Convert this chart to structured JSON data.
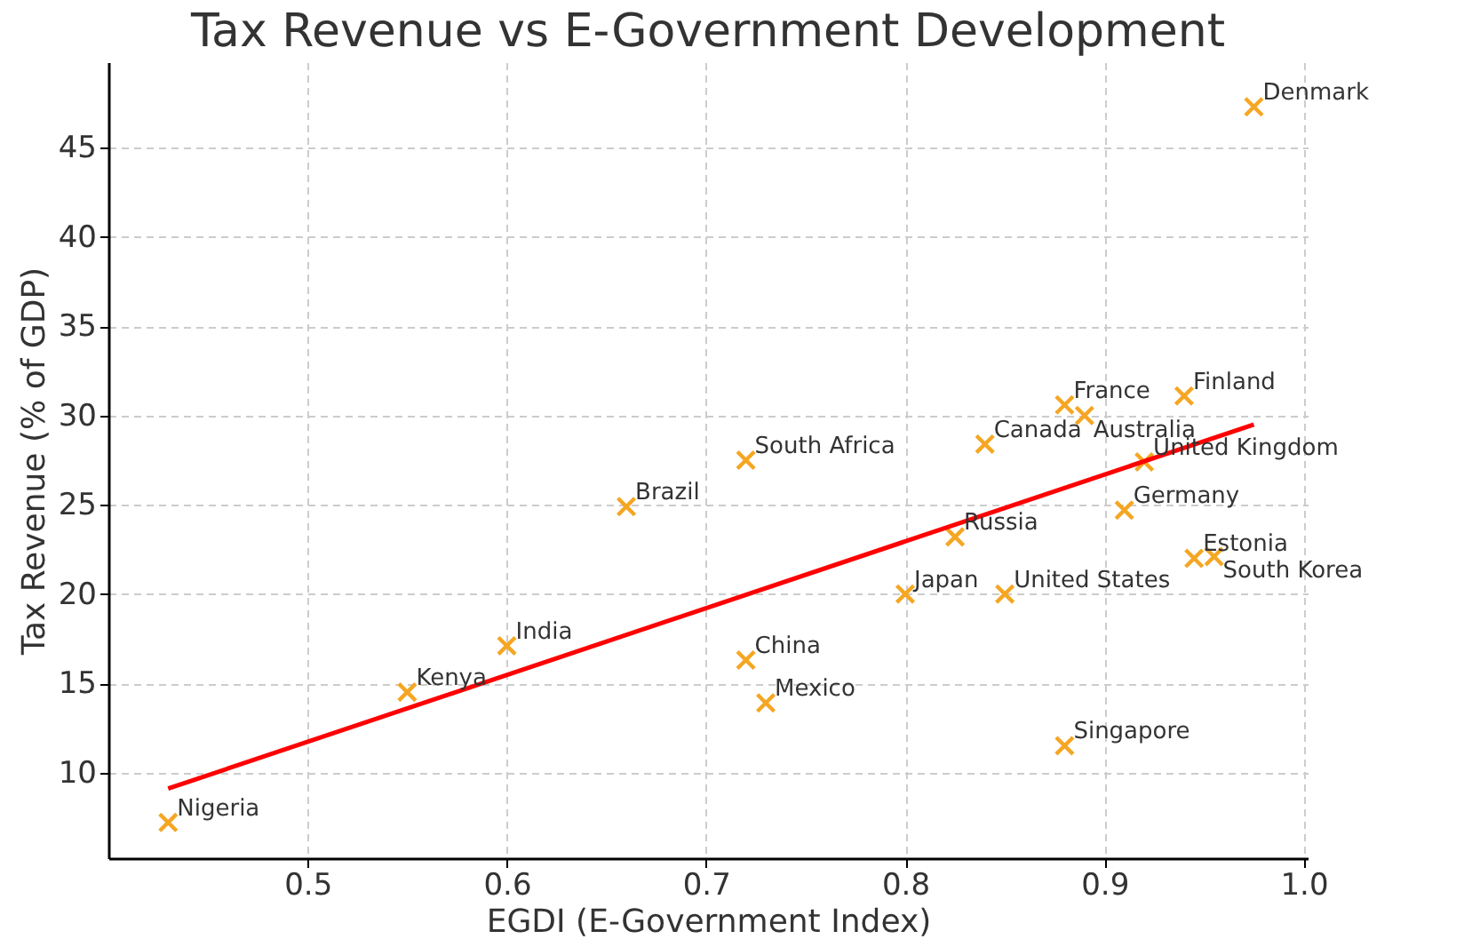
{
  "chart_data": {
    "type": "scatter",
    "title": "Tax Revenue vs E-Government Development",
    "xlabel": "EGDI (E-Government Index)",
    "ylabel": "Tax Revenue (% of GDP)",
    "xlim": [
      0.4,
      1.002
    ],
    "ylim": [
      5.2,
      49.8
    ],
    "xticks": [
      {
        "value": 0.5,
        "label": "0.5"
      },
      {
        "value": 0.6,
        "label": "0.6"
      },
      {
        "value": 0.7,
        "label": "0.7"
      },
      {
        "value": 0.8,
        "label": "0.8"
      },
      {
        "value": 0.9,
        "label": "0.9"
      },
      {
        "value": 1.0,
        "label": "1.0"
      }
    ],
    "yticks": [
      10,
      15,
      20,
      25,
      30,
      35,
      40,
      45
    ],
    "grid": true,
    "series": [
      {
        "color": "#f5a623",
        "marker": "cross",
        "x": [
          0.43,
          0.55,
          0.6,
          0.66,
          0.72,
          0.72,
          0.73,
          0.8,
          0.825,
          0.85,
          0.84,
          0.88,
          0.89,
          0.94,
          0.975,
          0.92,
          0.91,
          0.945,
          0.955,
          0.88
        ],
        "values": [
          7.2,
          14.5,
          17.1,
          24.9,
          27.5,
          16.3,
          13.9,
          20.0,
          23.2,
          20.0,
          28.4,
          30.6,
          30.0,
          31.1,
          47.3,
          27.4,
          24.7,
          22.0,
          22.1,
          11.5
        ]
      },
      {
        "type": "line",
        "color": "#ff0000",
        "x": [
          0.43,
          0.975
        ],
        "values": [
          9.1,
          29.5
        ],
        "marker": "none"
      }
    ],
    "annotations": [
      {
        "text": "Nigeria",
        "x": 0.43,
        "y": 7.2
      },
      {
        "text": "Kenya",
        "x": 0.55,
        "y": 14.5
      },
      {
        "text": "India",
        "x": 0.6,
        "y": 17.1
      },
      {
        "text": "Brazil",
        "x": 0.66,
        "y": 24.9
      },
      {
        "text": "South Africa",
        "x": 0.72,
        "y": 27.5
      },
      {
        "text": "China",
        "x": 0.72,
        "y": 16.3
      },
      {
        "text": "Mexico",
        "x": 0.73,
        "y": 13.9
      },
      {
        "text": "Japan",
        "x": 0.8,
        "y": 20.0
      },
      {
        "text": "Russia",
        "x": 0.825,
        "y": 23.2
      },
      {
        "text": "United States",
        "x": 0.85,
        "y": 20.0
      },
      {
        "text": "Canada",
        "x": 0.84,
        "y": 28.4
      },
      {
        "text": "France",
        "x": 0.88,
        "y": 30.6
      },
      {
        "text": "Australia",
        "x": 0.89,
        "y": 30.0
      },
      {
        "text": "Finland",
        "x": 0.94,
        "y": 31.1
      },
      {
        "text": "Denmark",
        "x": 0.975,
        "y": 47.3
      },
      {
        "text": "United Kingdom",
        "x": 0.92,
        "y": 27.4
      },
      {
        "text": "Germany",
        "x": 0.91,
        "y": 24.7
      },
      {
        "text": "Estonia",
        "x": 0.945,
        "y": 22.0
      },
      {
        "text": "South Korea",
        "x": 0.955,
        "y": 22.1
      },
      {
        "text": "Singapore",
        "x": 0.88,
        "y": 11.5
      }
    ]
  }
}
